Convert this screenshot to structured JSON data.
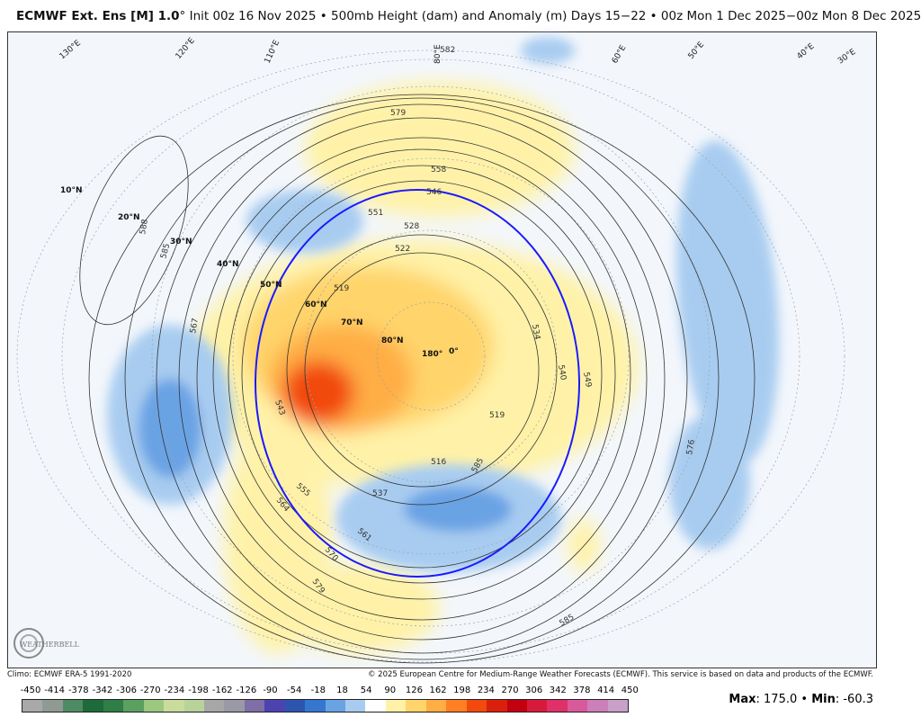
{
  "header": {
    "model": "ECMWF Ext. Ens [M] 1.0",
    "model_suffix": "°",
    "title_rest": "Init 00z 16 Nov 2025 • 500mb Height (dam) and Anomaly (m)",
    "period": "Days 15−22 • 00z Mon 1 Dec 2025−00z Mon 8 Dec 2025"
  },
  "footer": {
    "climo": "Climo: ECMWF ERA-5 1991-2020",
    "copyright": "© 2025 European Centre for Medium-Range Weather Forecasts (ECMWF). This service is based on data and products of the ECMWF.",
    "max_label": "Max",
    "max_value": "175.0",
    "min_label": "Min",
    "min_value": "-60.3"
  },
  "logo": {
    "text": "WEATHERBELL"
  },
  "colorbar": {
    "ticks": [
      "-450",
      "-414",
      "-378",
      "-342",
      "-306",
      "-270",
      "-234",
      "-198",
      "-162",
      "-126",
      "-90",
      "-54",
      "-18",
      "18",
      "54",
      "90",
      "126",
      "162",
      "198",
      "234",
      "270",
      "306",
      "342",
      "378",
      "414",
      "450"
    ],
    "colors": [
      "#a9a9a9",
      "#8f9a93",
      "#4e8a64",
      "#1d6b3a",
      "#2f7d47",
      "#5aa05e",
      "#9cc77e",
      "#c8dd9c",
      "#b7d39a",
      "#a7a7a7",
      "#9a9aa6",
      "#7e6fa6",
      "#4d43b0",
      "#2d55b0",
      "#3577d0",
      "#6aa3e4",
      "#a8ccf0",
      "#ffffff",
      "#fff2a8",
      "#ffd46a",
      "#ffad45",
      "#ff7f22",
      "#f24a0e",
      "#d9200c",
      "#c4000f",
      "#d61a3c",
      "#e0306a",
      "#d85a9a",
      "#cc7fb8",
      "#c8a0c8"
    ]
  },
  "map": {
    "lat_labels": [
      "10°N",
      "20°N",
      "30°N",
      "40°N",
      "50°N",
      "60°N",
      "70°N",
      "80°N"
    ],
    "lon_labels": [
      "180°",
      "0°",
      "130°E",
      "120°E",
      "110°E",
      "80°E",
      "60°E",
      "50°E",
      "40°E",
      "30°E"
    ],
    "contour_labels": [
      "582",
      "579",
      "558",
      "546",
      "551",
      "528",
      "522",
      "519",
      "534",
      "540",
      "549",
      "543",
      "567",
      "564",
      "555",
      "561",
      "570",
      "579",
      "585",
      "588",
      "585",
      "576",
      "585",
      "516",
      "519",
      "537"
    ],
    "thick_contour_color": "#1a1aff"
  }
}
